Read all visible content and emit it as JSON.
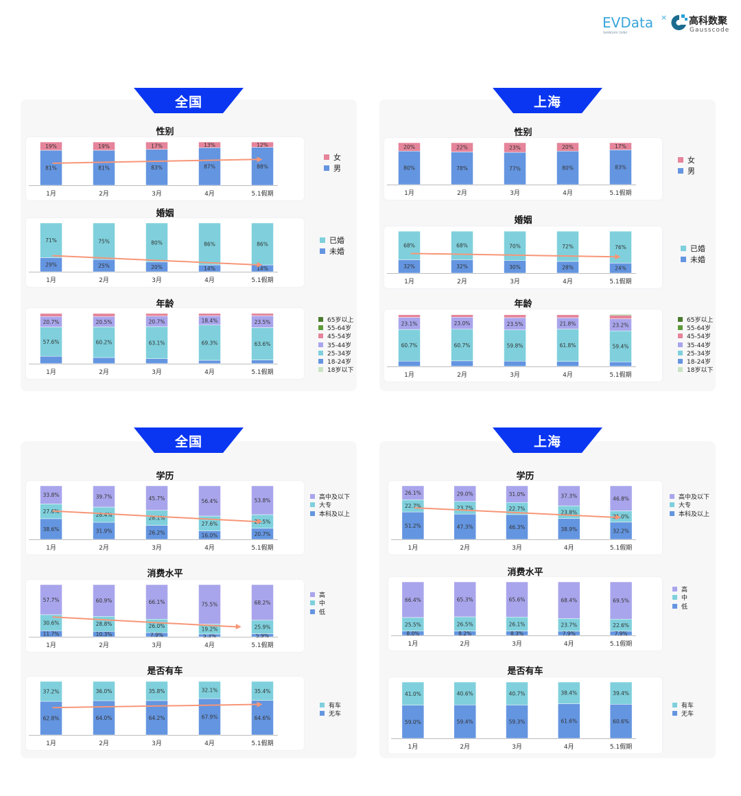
{
  "logos": {
    "evdata": "EVData",
    "evdata_sub": "SHANGHAI CHINA",
    "gauss_cn": "高科数聚",
    "gauss_en": "Gausscode"
  },
  "colors": {
    "banner": "#0a36f2",
    "arrow": "#f79677"
  },
  "panels": [
    {
      "title": "全国"
    },
    {
      "title": "上海"
    },
    {
      "title": "全国"
    },
    {
      "title": "上海"
    }
  ],
  "chart_data": [
    {
      "region": "全国",
      "type": "bar",
      "stacked": true,
      "title": "性别",
      "categories": [
        "1月",
        "2月",
        "3月",
        "4月",
        "5.1假期"
      ],
      "decimals": 0,
      "trend_arrow": true,
      "series": [
        {
          "name": "女",
          "color": "#e5849a",
          "labeled": true,
          "values": [
            19,
            19,
            17,
            13,
            12
          ]
        },
        {
          "name": "男",
          "color": "#6495e0",
          "labeled": true,
          "values": [
            81,
            81,
            83,
            87,
            88
          ]
        }
      ]
    },
    {
      "region": "全国",
      "type": "bar",
      "stacked": true,
      "title": "婚姻",
      "categories": [
        "1月",
        "2月",
        "3月",
        "4月",
        "5.1假期"
      ],
      "decimals": 0,
      "trend_arrow": true,
      "series": [
        {
          "name": "已婚",
          "color": "#7fd0dc",
          "labeled": true,
          "values": [
            71,
            75,
            80,
            86,
            86
          ]
        },
        {
          "name": "未婚",
          "color": "#6495e0",
          "labeled": true,
          "values": [
            29,
            25,
            20,
            14,
            14
          ]
        }
      ]
    },
    {
      "region": "全国",
      "type": "bar",
      "stacked": true,
      "title": "年龄",
      "categories": [
        "1月",
        "2月",
        "3月",
        "4月",
        "5.1假期"
      ],
      "decimals": 1,
      "trend_arrow": false,
      "series": [
        {
          "name": "65岁以上",
          "color": "#4a7a2e",
          "labeled": false,
          "values": [
            0.3,
            0.3,
            0.3,
            0.3,
            0.2
          ]
        },
        {
          "name": "55-64岁",
          "color": "#5e9a3a",
          "labeled": false,
          "values": [
            0.8,
            0.8,
            0.8,
            0.7,
            0.8
          ]
        },
        {
          "name": "45-54岁",
          "color": "#e5849a",
          "labeled": false,
          "values": [
            6.0,
            6.0,
            5.2,
            4.6,
            4.5
          ]
        },
        {
          "name": "35-44岁",
          "color": "#a9a5ec",
          "labeled": true,
          "values": [
            20.7,
            20.5,
            20.7,
            18.4,
            23.5
          ]
        },
        {
          "name": "25-34岁",
          "color": "#7fd0dc",
          "labeled": true,
          "values": [
            57.6,
            60.2,
            63.1,
            69.3,
            63.6
          ]
        },
        {
          "name": "18-24岁",
          "color": "#6495e0",
          "labeled": false,
          "values": [
            14.4,
            12.0,
            9.7,
            6.5,
            7.2
          ]
        },
        {
          "name": "18岁以下",
          "color": "#c9e3c2",
          "labeled": false,
          "values": [
            0.2,
            0.2,
            0.2,
            0.2,
            0.2
          ]
        }
      ]
    },
    {
      "region": "上海",
      "type": "bar",
      "stacked": true,
      "title": "性别",
      "categories": [
        "1月",
        "2月",
        "3月",
        "4月",
        "5.1假期"
      ],
      "decimals": 0,
      "trend_arrow": false,
      "series": [
        {
          "name": "女",
          "color": "#e5849a",
          "labeled": true,
          "values": [
            20,
            22,
            23,
            20,
            17
          ]
        },
        {
          "name": "男",
          "color": "#6495e0",
          "labeled": true,
          "values": [
            80,
            78,
            77,
            80,
            83
          ]
        }
      ]
    },
    {
      "region": "上海",
      "type": "bar",
      "stacked": true,
      "title": "婚姻",
      "categories": [
        "1月",
        "2月",
        "3月",
        "4月",
        "5.1假期"
      ],
      "decimals": 0,
      "trend_arrow": true,
      "series": [
        {
          "name": "已婚",
          "color": "#7fd0dc",
          "labeled": true,
          "values": [
            68,
            68,
            70,
            72,
            76
          ]
        },
        {
          "name": "未婚",
          "color": "#6495e0",
          "labeled": true,
          "values": [
            32,
            32,
            30,
            28,
            24
          ]
        }
      ]
    },
    {
      "region": "上海",
      "type": "bar",
      "stacked": true,
      "title": "年龄",
      "categories": [
        "1月",
        "2月",
        "3月",
        "4月",
        "5.1假期"
      ],
      "decimals": 1,
      "trend_arrow": false,
      "series": [
        {
          "name": "65岁以上",
          "color": "#4a7a2e",
          "labeled": false,
          "values": [
            0.2,
            0.2,
            0.2,
            0.2,
            0.5
          ]
        },
        {
          "name": "55-64岁",
          "color": "#5e9a3a",
          "labeled": false,
          "values": [
            0.8,
            0.6,
            0.8,
            0.8,
            1.6
          ]
        },
        {
          "name": "45-54岁",
          "color": "#e5849a",
          "labeled": false,
          "values": [
            5.0,
            4.8,
            5.5,
            5.6,
            6.5
          ]
        },
        {
          "name": "35-44岁",
          "color": "#a9a5ec",
          "labeled": true,
          "values": [
            23.1,
            23.0,
            23.5,
            21.8,
            23.2
          ]
        },
        {
          "name": "25-34岁",
          "color": "#7fd0dc",
          "labeled": true,
          "values": [
            60.7,
            60.7,
            59.8,
            61.8,
            59.4
          ]
        },
        {
          "name": "18-24岁",
          "color": "#6495e0",
          "labeled": false,
          "values": [
            10.0,
            10.5,
            10.0,
            9.6,
            8.6
          ]
        },
        {
          "name": "18岁以下",
          "color": "#c9e3c2",
          "labeled": false,
          "values": [
            0.2,
            0.2,
            0.2,
            0.2,
            0.2
          ]
        }
      ]
    },
    {
      "region": "全国",
      "type": "bar",
      "stacked": true,
      "title": "学历",
      "categories": [
        "1月",
        "2月",
        "3月",
        "4月",
        "5.1假期"
      ],
      "decimals": 1,
      "trend_arrow": true,
      "series": [
        {
          "name": "高中及以下",
          "color": "#a9a5ec",
          "labeled": true,
          "values": [
            33.8,
            39.7,
            45.7,
            56.4,
            53.8
          ]
        },
        {
          "name": "大专",
          "color": "#7fd0dc",
          "labeled": true,
          "values": [
            27.6,
            28.4,
            28.1,
            27.6,
            25.5
          ]
        },
        {
          "name": "本科及以上",
          "color": "#6495e0",
          "labeled": true,
          "values": [
            38.6,
            31.9,
            26.2,
            16.0,
            20.7
          ]
        }
      ]
    },
    {
      "region": "全国",
      "type": "bar",
      "stacked": true,
      "title": "消费水平",
      "categories": [
        "1月",
        "2月",
        "3月",
        "4月",
        "5.1假期"
      ],
      "decimals": 1,
      "trend_arrow": true,
      "series": [
        {
          "name": "高",
          "color": "#a9a5ec",
          "labeled": true,
          "values": [
            57.7,
            60.9,
            66.1,
            75.5,
            68.2
          ]
        },
        {
          "name": "中",
          "color": "#7fd0dc",
          "labeled": true,
          "values": [
            30.6,
            28.8,
            26.0,
            19.2,
            25.9
          ]
        },
        {
          "name": "低",
          "color": "#6495e0",
          "labeled": true,
          "values": [
            11.7,
            10.3,
            7.9,
            5.3,
            5.9
          ]
        }
      ]
    },
    {
      "region": "全国",
      "type": "bar",
      "stacked": true,
      "title": "是否有车",
      "categories": [
        "1月",
        "2月",
        "3月",
        "4月",
        "5.1假期"
      ],
      "decimals": 1,
      "trend_arrow": true,
      "series": [
        {
          "name": "有车",
          "color": "#7fd0dc",
          "labeled": true,
          "values": [
            37.2,
            36.0,
            35.8,
            32.1,
            35.4
          ]
        },
        {
          "name": "无车",
          "color": "#6495e0",
          "labeled": true,
          "values": [
            62.8,
            64.0,
            64.2,
            67.9,
            64.6
          ]
        }
      ]
    },
    {
      "region": "上海",
      "type": "bar",
      "stacked": true,
      "title": "学历",
      "categories": [
        "1月",
        "2月",
        "3月",
        "4月",
        "5.1假期"
      ],
      "decimals": 1,
      "trend_arrow": true,
      "series": [
        {
          "name": "高中及以下",
          "color": "#a9a5ec",
          "labeled": true,
          "values": [
            26.1,
            29.0,
            31.0,
            37.3,
            46.8
          ]
        },
        {
          "name": "大专",
          "color": "#7fd0dc",
          "labeled": true,
          "values": [
            22.7,
            23.7,
            22.7,
            23.8,
            21.0
          ]
        },
        {
          "name": "本科及以上",
          "color": "#6495e0",
          "labeled": true,
          "values": [
            51.2,
            47.3,
            46.3,
            38.9,
            32.2
          ]
        }
      ]
    },
    {
      "region": "上海",
      "type": "bar",
      "stacked": true,
      "title": "消费水平",
      "categories": [
        "1月",
        "2月",
        "3月",
        "4月",
        "5.1假期"
      ],
      "decimals": 1,
      "trend_arrow": false,
      "series": [
        {
          "name": "高",
          "color": "#a9a5ec",
          "labeled": true,
          "values": [
            66.4,
            65.3,
            65.6,
            68.4,
            69.5
          ]
        },
        {
          "name": "中",
          "color": "#7fd0dc",
          "labeled": true,
          "values": [
            25.5,
            26.5,
            26.1,
            23.7,
            22.6
          ]
        },
        {
          "name": "低",
          "color": "#6495e0",
          "labeled": true,
          "values": [
            8.0,
            8.2,
            8.3,
            7.9,
            7.9
          ]
        }
      ]
    },
    {
      "region": "上海",
      "type": "bar",
      "stacked": true,
      "title": "是否有车",
      "categories": [
        "1月",
        "2月",
        "3月",
        "4月",
        "5.1假期"
      ],
      "decimals": 1,
      "trend_arrow": false,
      "series": [
        {
          "name": "有车",
          "color": "#7fd0dc",
          "labeled": true,
          "values": [
            41.0,
            40.6,
            40.7,
            38.4,
            39.4
          ]
        },
        {
          "name": "无车",
          "color": "#6495e0",
          "labeled": true,
          "values": [
            59.0,
            59.4,
            59.3,
            61.6,
            60.6
          ]
        }
      ]
    }
  ]
}
